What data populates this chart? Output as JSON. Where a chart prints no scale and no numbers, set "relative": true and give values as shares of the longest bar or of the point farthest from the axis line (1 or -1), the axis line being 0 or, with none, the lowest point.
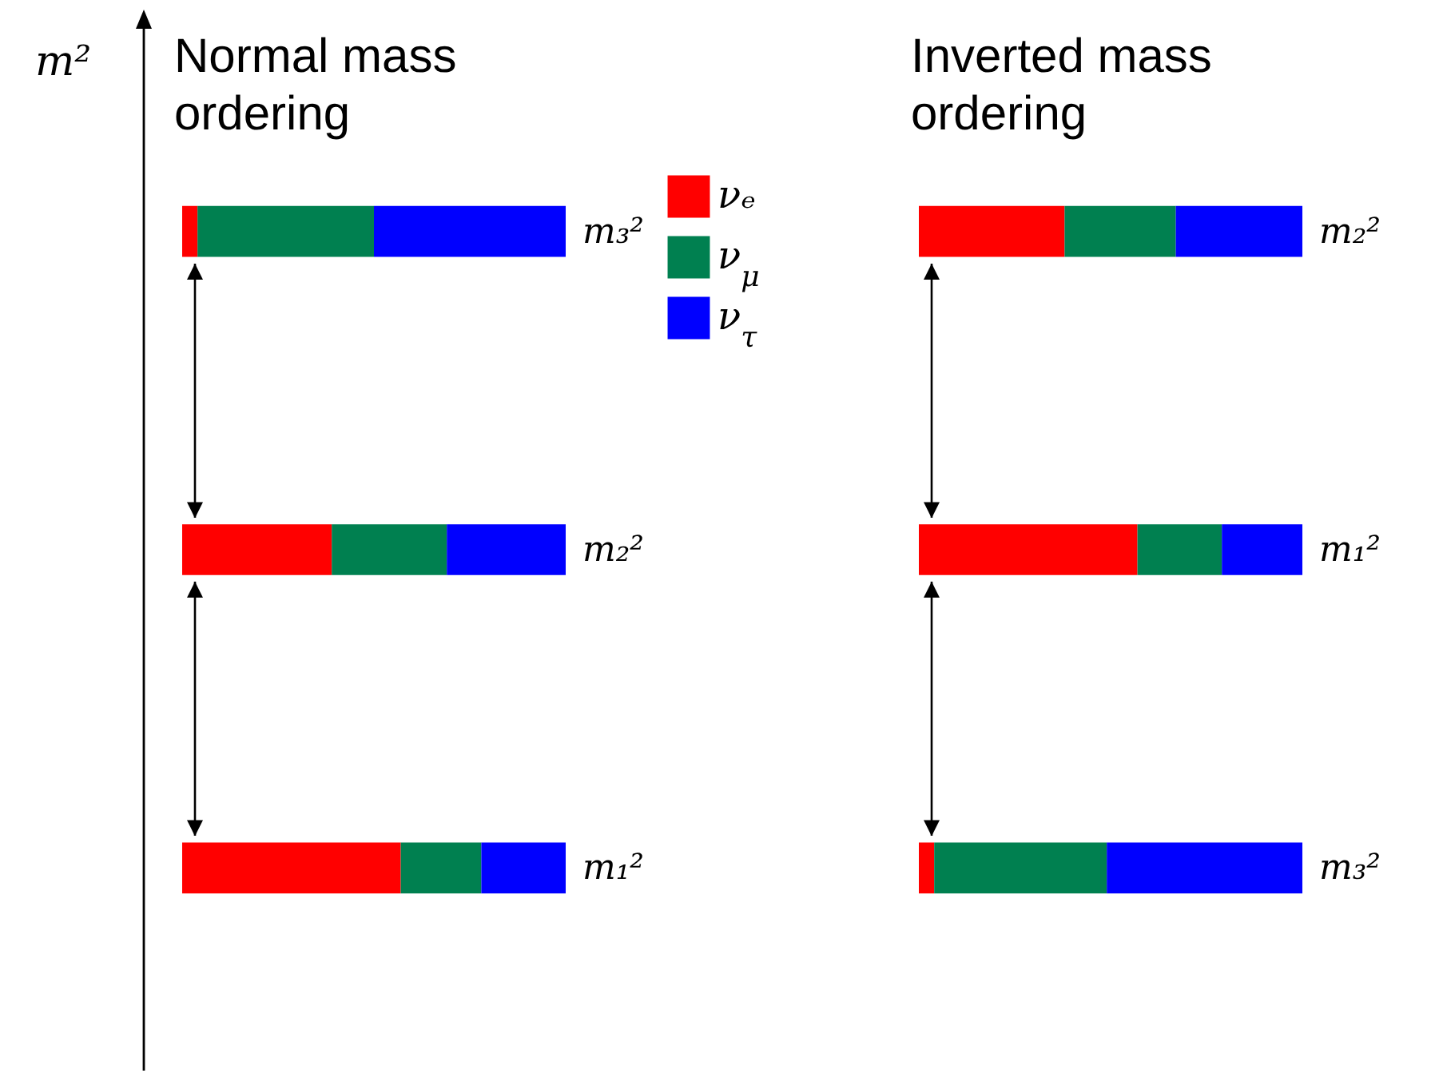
{
  "chart_data": [
    {
      "type": "bar",
      "title": "Normal mass ordering",
      "ylabel": "m²",
      "orientation": "horizontal",
      "stacked": true,
      "relative": true,
      "legend": "top right",
      "categories": [
        "m₃²",
        "m₂²",
        "m₁²"
      ],
      "series": [
        {
          "name": "νₑ",
          "color": "#ff0000",
          "values": [
            0.04,
            0.39,
            0.57
          ]
        },
        {
          "name": "ν$_{μ}$",
          "color": "#008050",
          "values": [
            0.46,
            0.3,
            0.21
          ]
        },
        {
          "name": "ν$_{τ}$",
          "color": "#0000ff",
          "values": [
            0.5,
            0.31,
            0.22
          ]
        }
      ]
    },
    {
      "type": "bar",
      "title": "Inverted mass ordering",
      "orientation": "horizontal",
      "stacked": true,
      "relative": true,
      "categories": [
        "m₂²",
        "m₁²",
        "m₃²"
      ],
      "series": [
        {
          "color": "#ff0000",
          "values": [
            0.38,
            0.57,
            0.04
          ]
        },
        {
          "color": "#008050",
          "values": [
            0.29,
            0.22,
            0.45
          ]
        },
        {
          "color": "#0000ff",
          "values": [
            0.33,
            0.21,
            0.51
          ]
        }
      ]
    }
  ]
}
